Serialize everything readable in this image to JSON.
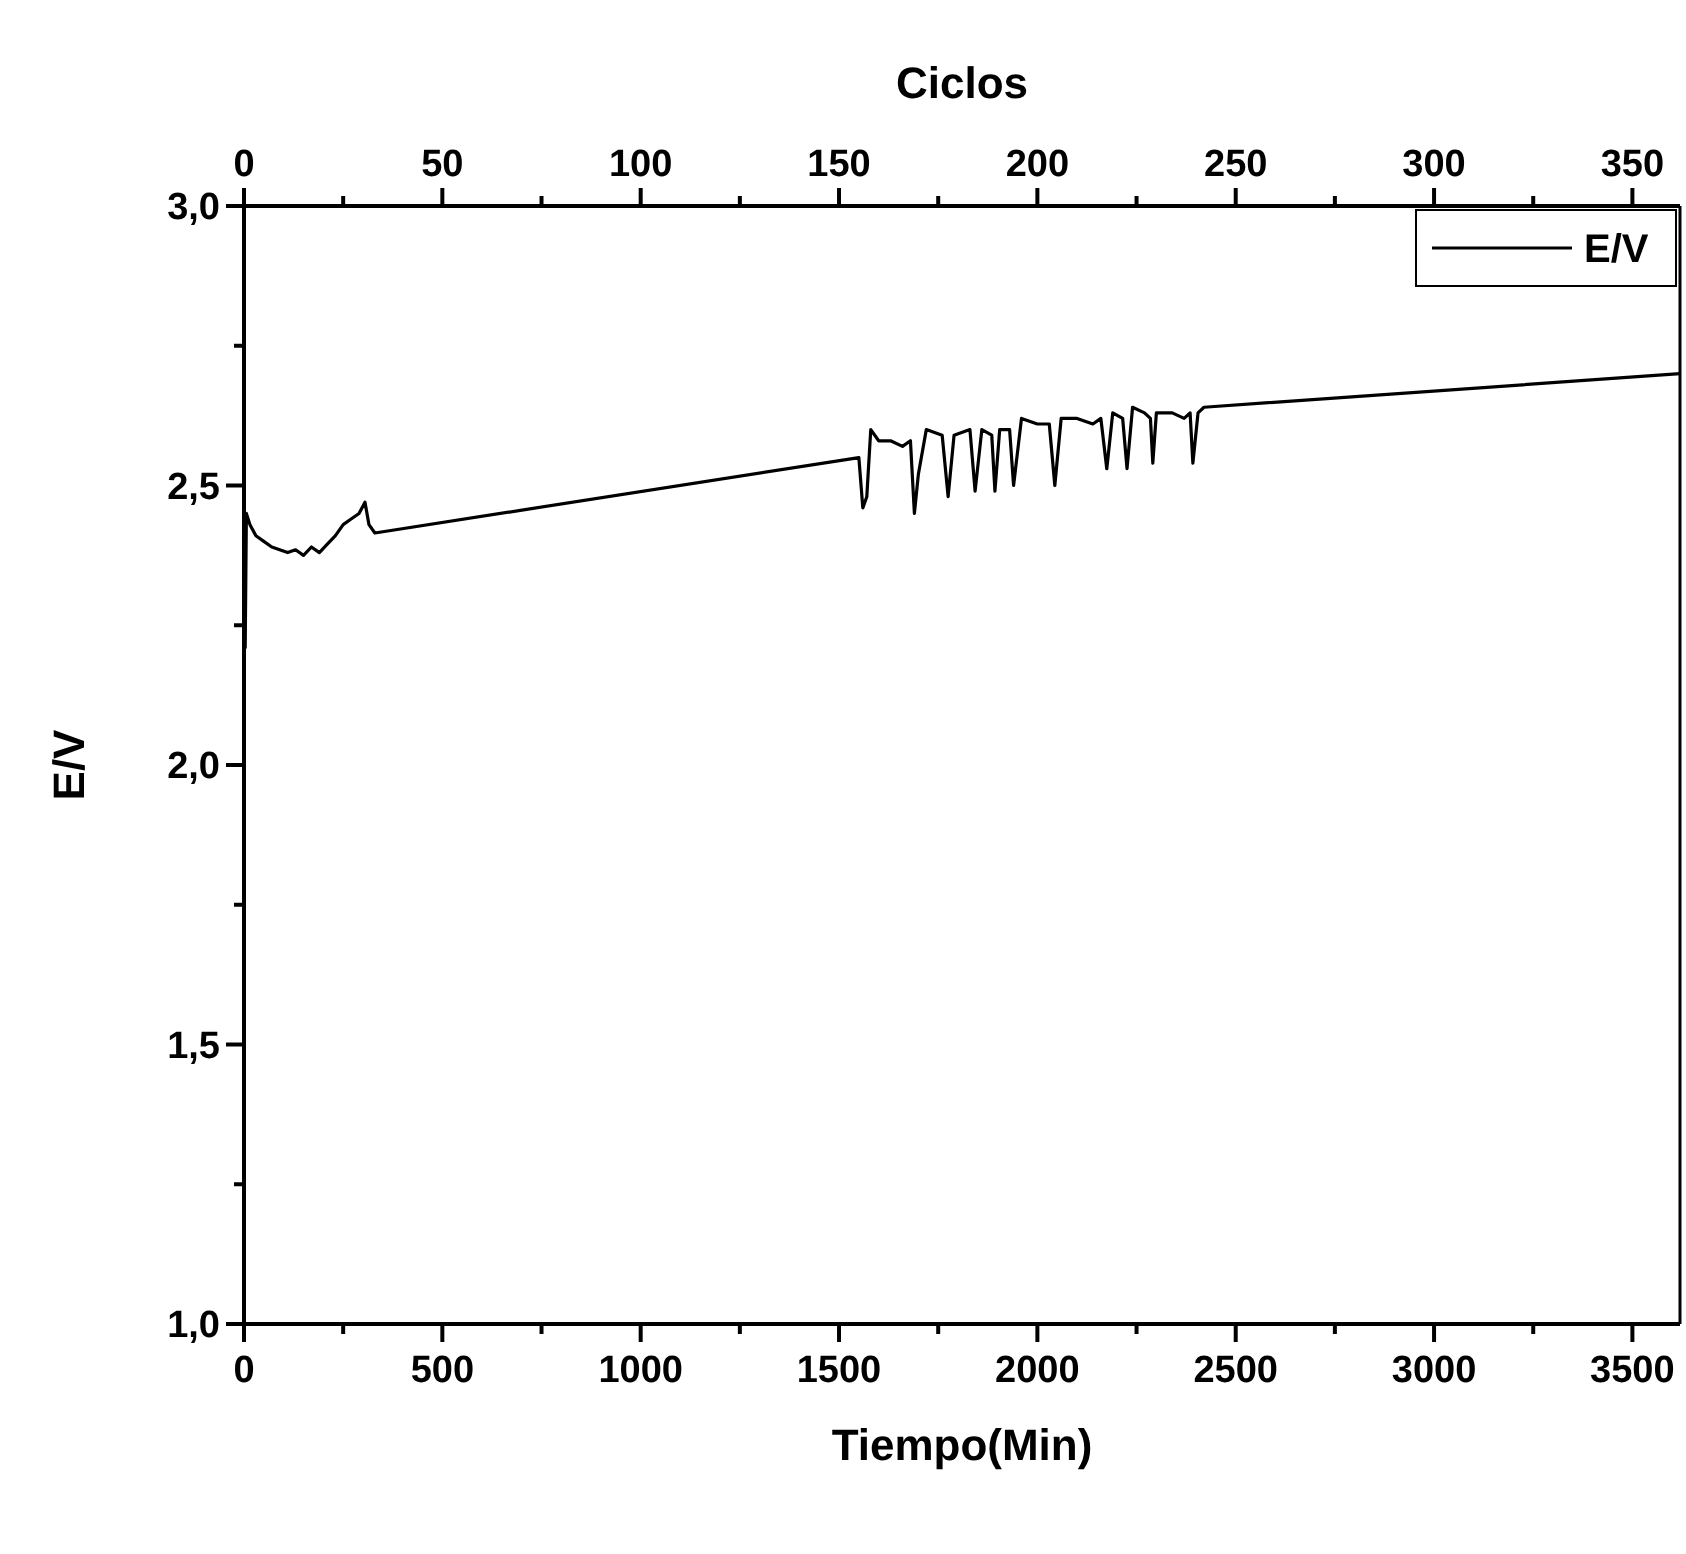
{
  "chart_data": {
    "type": "line",
    "xlabel": "Tiempo(Min)",
    "x2label": "Ciclos",
    "ylabel": "E/V",
    "xlim": [
      0,
      3620
    ],
    "x2lim": [
      0,
      362
    ],
    "ylim": [
      1.0,
      3.0
    ],
    "xticks": [
      0,
      {
        "value": 250,
        "label": null
      },
      500,
      {
        "value": 750,
        "label": null
      },
      1000,
      {
        "value": 1250,
        "label": null
      },
      1500,
      {
        "value": 1750,
        "label": null
      },
      2000,
      {
        "value": 2250,
        "label": null
      },
      2500,
      {
        "value": 2750,
        "label": null
      },
      3000,
      {
        "value": 3250,
        "label": null
      },
      3500
    ],
    "x2ticks": [
      0,
      {
        "value": 25,
        "label": null
      },
      50,
      {
        "value": 75,
        "label": null
      },
      100,
      {
        "value": 125,
        "label": null
      },
      150,
      {
        "value": 175,
        "label": null
      },
      200,
      {
        "value": 225,
        "label": null
      },
      250,
      {
        "value": 275,
        "label": null
      },
      300,
      {
        "value": 325,
        "label": null
      },
      350
    ],
    "yticks": [
      {
        "value": 1.0,
        "label": "1,0"
      },
      {
        "value": 1.25,
        "label": null
      },
      {
        "value": 1.5,
        "label": "1,5"
      },
      {
        "value": 1.75,
        "label": null
      },
      {
        "value": 2.0,
        "label": "2,0"
      },
      {
        "value": 2.25,
        "label": null
      },
      {
        "value": 2.5,
        "label": "2,5"
      },
      {
        "value": 2.75,
        "label": null
      },
      {
        "value": 3.0,
        "label": "3,0"
      }
    ],
    "legend": "top right",
    "marker": "none",
    "line_style": "solid",
    "grid": false,
    "series": [
      {
        "name": "E/V",
        "color": "#000000",
        "x": [
          0,
          3,
          6,
          15,
          30,
          50,
          70,
          90,
          110,
          130,
          150,
          170,
          190,
          210,
          230,
          250,
          270,
          290,
          305,
          315,
          330,
          1550,
          1560,
          1570,
          1580,
          1600,
          1630,
          1660,
          1680,
          1690,
          1700,
          1720,
          1760,
          1775,
          1790,
          1830,
          1843,
          1860,
          1885,
          1893,
          1905,
          1930,
          1940,
          1960,
          2000,
          2030,
          2044,
          2060,
          2100,
          2140,
          2160,
          2175,
          2190,
          2215,
          2226,
          2240,
          2270,
          2285,
          2291,
          2300,
          2340,
          2370,
          2385,
          2392,
          2405,
          2420,
          3620
        ],
        "values": [
          2.47,
          2.21,
          2.45,
          2.43,
          2.41,
          2.4,
          2.39,
          2.385,
          2.38,
          2.385,
          2.375,
          2.39,
          2.38,
          2.395,
          2.41,
          2.43,
          2.44,
          2.45,
          2.47,
          2.43,
          2.415,
          2.55,
          2.46,
          2.48,
          2.6,
          2.58,
          2.58,
          2.57,
          2.58,
          2.45,
          2.52,
          2.6,
          2.59,
          2.48,
          2.59,
          2.6,
          2.49,
          2.6,
          2.59,
          2.49,
          2.6,
          2.6,
          2.5,
          2.62,
          2.61,
          2.61,
          2.5,
          2.62,
          2.62,
          2.61,
          2.62,
          2.53,
          2.63,
          2.62,
          2.53,
          2.64,
          2.63,
          2.62,
          2.54,
          2.63,
          2.63,
          2.62,
          2.63,
          2.54,
          2.63,
          2.64,
          2.7
        ]
      }
    ]
  }
}
